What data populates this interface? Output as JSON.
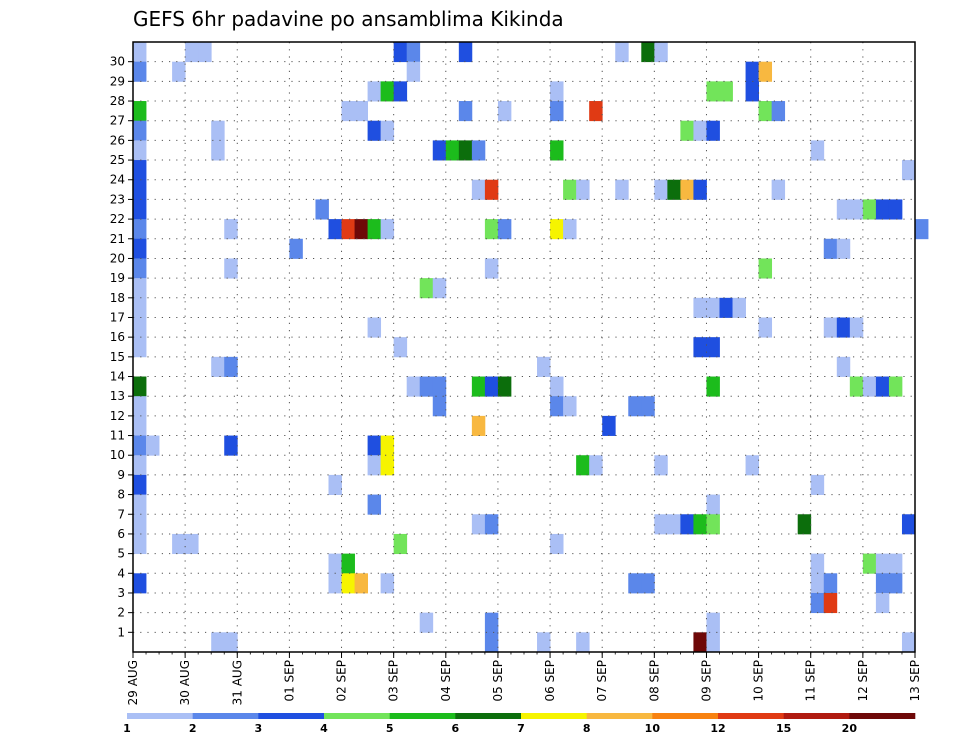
{
  "chart_data": {
    "type": "heatmap",
    "title": "GEFS 6hr padavine po ansamblima Kikinda",
    "xlabel": "",
    "ylabel": "",
    "x_tick_labels": [
      "29 AUG",
      "30 AUG",
      "31 AUG",
      "01 SEP",
      "02 SEP",
      "03 SEP",
      "04 SEP",
      "05 SEP",
      "06 SEP",
      "07 SEP",
      "08 SEP",
      "09 SEP",
      "10 SEP",
      "11 SEP",
      "12 SEP",
      "13 SEP"
    ],
    "y_tick_labels": [
      "1",
      "2",
      "3",
      "4",
      "5",
      "6",
      "7",
      "8",
      "9",
      "10",
      "11",
      "12",
      "13",
      "14",
      "15",
      "16",
      "17",
      "18",
      "19",
      "20",
      "21",
      "22",
      "23",
      "24",
      "25",
      "26",
      "27",
      "28",
      "29",
      "30"
    ],
    "n_timesteps": 61,
    "n_members": 30,
    "color_levels": [
      {
        "min": "1",
        "color": "#aabff5"
      },
      {
        "min": "2",
        "color": "#5b87ea"
      },
      {
        "min": "3",
        "color": "#1f4fe0"
      },
      {
        "min": "4",
        "color": "#72e45a"
      },
      {
        "min": "5",
        "color": "#1cbc1c"
      },
      {
        "min": "6",
        "color": "#0c6e0c"
      },
      {
        "min": "7",
        "color": "#f6f400"
      },
      {
        "min": "8",
        "color": "#f8b840"
      },
      {
        "min": "10",
        "color": "#f88210"
      },
      {
        "min": "12",
        "color": "#e03a14"
      },
      {
        "min": "15",
        "color": "#b01a10"
      },
      {
        "min": "20",
        "color": "#6e0808"
      }
    ],
    "cells": [
      {
        "member": 30,
        "cells": [
          [
            0,
            0
          ],
          [
            4,
            0
          ],
          [
            5,
            0
          ],
          [
            20,
            2
          ],
          [
            21,
            1
          ],
          [
            25,
            2
          ],
          [
            37,
            0
          ],
          [
            39,
            5
          ],
          [
            40,
            0
          ]
        ]
      },
      {
        "member": 29,
        "cells": [
          [
            0,
            1
          ],
          [
            3,
            0
          ],
          [
            21,
            0
          ],
          [
            47,
            2
          ],
          [
            48,
            7
          ]
        ]
      },
      {
        "member": 28,
        "cells": [
          [
            18,
            0
          ],
          [
            19,
            4
          ],
          [
            20,
            2
          ],
          [
            32,
            0
          ],
          [
            44,
            3
          ],
          [
            45,
            3
          ],
          [
            47,
            2
          ]
        ]
      },
      {
        "member": 27,
        "cells": [
          [
            0,
            4
          ],
          [
            16,
            0
          ],
          [
            17,
            0
          ],
          [
            25,
            1
          ],
          [
            28,
            0
          ],
          [
            32,
            1
          ],
          [
            35,
            9
          ],
          [
            48,
            3
          ],
          [
            49,
            1
          ]
        ]
      },
      {
        "member": 26,
        "cells": [
          [
            0,
            1
          ],
          [
            6,
            0
          ],
          [
            18,
            2
          ],
          [
            19,
            0
          ],
          [
            42,
            3
          ],
          [
            43,
            0
          ],
          [
            44,
            2
          ]
        ]
      },
      {
        "member": 25,
        "cells": [
          [
            0,
            0
          ],
          [
            6,
            0
          ],
          [
            23,
            2
          ],
          [
            24,
            4
          ],
          [
            25,
            5
          ],
          [
            26,
            1
          ],
          [
            32,
            4
          ],
          [
            52,
            0
          ]
        ]
      },
      {
        "member": 24,
        "cells": [
          [
            0,
            2
          ],
          [
            59,
            0
          ]
        ]
      },
      {
        "member": 23,
        "cells": [
          [
            0,
            2
          ],
          [
            26,
            0
          ],
          [
            27,
            9
          ],
          [
            33,
            3
          ],
          [
            34,
            0
          ],
          [
            37,
            0
          ],
          [
            40,
            0
          ],
          [
            41,
            5
          ],
          [
            42,
            7
          ],
          [
            43,
            2
          ],
          [
            49,
            0
          ]
        ]
      },
      {
        "member": 22,
        "cells": [
          [
            0,
            2
          ],
          [
            14,
            1
          ],
          [
            54,
            0
          ],
          [
            55,
            0
          ],
          [
            56,
            3
          ],
          [
            57,
            2
          ],
          [
            58,
            2
          ]
        ]
      },
      {
        "member": 21,
        "cells": [
          [
            0,
            1
          ],
          [
            7,
            0
          ],
          [
            15,
            2
          ],
          [
            16,
            9
          ],
          [
            17,
            11
          ],
          [
            18,
            4
          ],
          [
            19,
            0
          ],
          [
            27,
            3
          ],
          [
            28,
            1
          ],
          [
            32,
            6
          ],
          [
            33,
            0
          ],
          [
            60,
            1
          ]
        ]
      },
      {
        "member": 20,
        "cells": [
          [
            0,
            2
          ],
          [
            12,
            1
          ],
          [
            53,
            1
          ],
          [
            54,
            0
          ]
        ]
      },
      {
        "member": 19,
        "cells": [
          [
            0,
            1
          ],
          [
            7,
            0
          ],
          [
            27,
            0
          ],
          [
            48,
            3
          ]
        ]
      },
      {
        "member": 18,
        "cells": [
          [
            0,
            0
          ],
          [
            22,
            3
          ],
          [
            23,
            0
          ]
        ]
      },
      {
        "member": 17,
        "cells": [
          [
            0,
            0
          ],
          [
            43,
            0
          ],
          [
            44,
            0
          ],
          [
            45,
            2
          ],
          [
            46,
            0
          ]
        ]
      },
      {
        "member": 16,
        "cells": [
          [
            0,
            0
          ],
          [
            18,
            0
          ],
          [
            48,
            0
          ],
          [
            53,
            0
          ],
          [
            54,
            2
          ],
          [
            55,
            0
          ]
        ]
      },
      {
        "member": 15,
        "cells": [
          [
            0,
            0
          ],
          [
            20,
            0
          ],
          [
            43,
            2
          ],
          [
            44,
            2
          ]
        ]
      },
      {
        "member": 14,
        "cells": [
          [
            6,
            0
          ],
          [
            7,
            1
          ],
          [
            31,
            0
          ],
          [
            54,
            0
          ]
        ]
      },
      {
        "member": 13,
        "cells": [
          [
            0,
            5
          ],
          [
            21,
            0
          ],
          [
            22,
            1
          ],
          [
            23,
            1
          ],
          [
            26,
            4
          ],
          [
            27,
            2
          ],
          [
            28,
            5
          ],
          [
            32,
            0
          ],
          [
            44,
            4
          ],
          [
            55,
            3
          ],
          [
            56,
            0
          ],
          [
            57,
            2
          ],
          [
            58,
            3
          ]
        ]
      },
      {
        "member": 12,
        "cells": [
          [
            0,
            0
          ],
          [
            23,
            1
          ],
          [
            32,
            1
          ],
          [
            33,
            0
          ],
          [
            38,
            1
          ],
          [
            39,
            1
          ]
        ]
      },
      {
        "member": 11,
        "cells": [
          [
            0,
            0
          ],
          [
            26,
            7
          ],
          [
            36,
            2
          ]
        ]
      },
      {
        "member": 10,
        "cells": [
          [
            0,
            1
          ],
          [
            1,
            0
          ],
          [
            7,
            2
          ],
          [
            18,
            2
          ],
          [
            19,
            6
          ]
        ]
      },
      {
        "member": 9,
        "cells": [
          [
            0,
            0
          ],
          [
            18,
            0
          ],
          [
            19,
            6
          ],
          [
            34,
            4
          ],
          [
            35,
            0
          ],
          [
            40,
            0
          ],
          [
            47,
            0
          ]
        ]
      },
      {
        "member": 8,
        "cells": [
          [
            0,
            2
          ],
          [
            15,
            0
          ],
          [
            52,
            0
          ]
        ]
      },
      {
        "member": 7,
        "cells": [
          [
            0,
            0
          ],
          [
            18,
            1
          ],
          [
            44,
            0
          ]
        ]
      },
      {
        "member": 6,
        "cells": [
          [
            0,
            0
          ],
          [
            26,
            0
          ],
          [
            27,
            1
          ],
          [
            40,
            0
          ],
          [
            41,
            0
          ],
          [
            42,
            2
          ],
          [
            43,
            4
          ],
          [
            44,
            3
          ],
          [
            51,
            5
          ],
          [
            59,
            2
          ]
        ]
      },
      {
        "member": 5,
        "cells": [
          [
            0,
            0
          ],
          [
            3,
            0
          ],
          [
            4,
            0
          ],
          [
            20,
            3
          ],
          [
            32,
            0
          ]
        ]
      },
      {
        "member": 4,
        "cells": [
          [
            15,
            0
          ],
          [
            16,
            4
          ],
          [
            52,
            0
          ],
          [
            56,
            3
          ],
          [
            57,
            0
          ],
          [
            58,
            0
          ]
        ]
      },
      {
        "member": 3,
        "cells": [
          [
            0,
            2
          ],
          [
            15,
            0
          ],
          [
            16,
            6
          ],
          [
            17,
            7
          ],
          [
            19,
            0
          ],
          [
            38,
            1
          ],
          [
            39,
            1
          ],
          [
            52,
            0
          ],
          [
            53,
            1
          ],
          [
            57,
            1
          ],
          [
            58,
            1
          ]
        ]
      },
      {
        "member": 2,
        "cells": [
          [
            52,
            1
          ],
          [
            53,
            9
          ],
          [
            57,
            0
          ]
        ]
      },
      {
        "member": 1,
        "cells": [
          [
            22,
            0
          ],
          [
            27,
            1
          ],
          [
            44,
            0
          ]
        ]
      },
      {
        "member": 0,
        "cells": [
          [
            6,
            0
          ],
          [
            7,
            0
          ],
          [
            27,
            1
          ],
          [
            31,
            0
          ],
          [
            34,
            0
          ],
          [
            43,
            11
          ],
          [
            44,
            0
          ],
          [
            59,
            0
          ]
        ]
      }
    ]
  }
}
